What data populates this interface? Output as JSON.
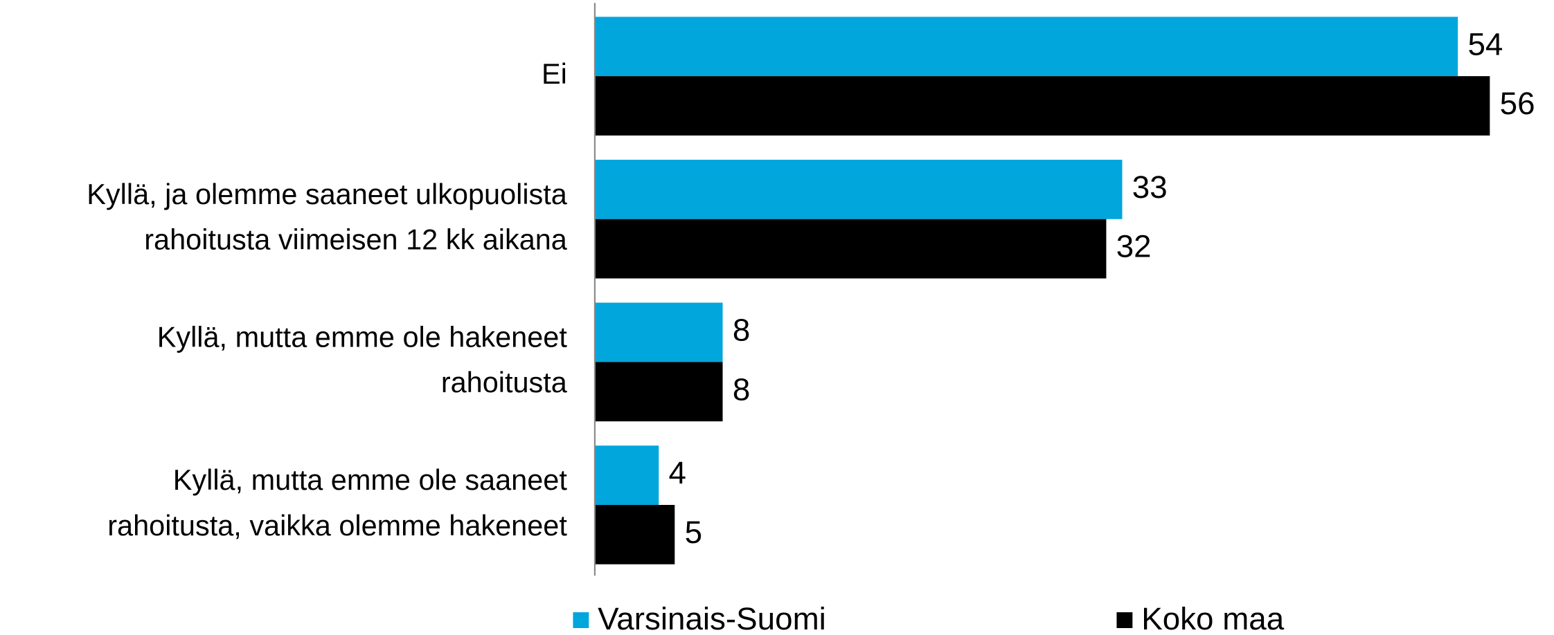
{
  "chart_data": {
    "type": "hbar",
    "categories": [
      "Ei",
      "Kyllä, ja olemme saaneet ulkopuolista\nrahoitusta viimeisen 12 kk aikana",
      "Kyllä, mutta emme ole hakeneet\nrahoitusta",
      "Kyllä, mutta emme ole saaneet\nrahoitusta, vaikka olemme hakeneet"
    ],
    "series": [
      {
        "name": "Varsinais-Suomi",
        "color": "#00a6dc",
        "values": [
          54,
          33,
          8,
          4
        ]
      },
      {
        "name": "Koko maa",
        "color": "#000000",
        "values": [
          56,
          32,
          8,
          5
        ]
      }
    ],
    "xlim": [
      0,
      57
    ],
    "legend": "bottom"
  }
}
